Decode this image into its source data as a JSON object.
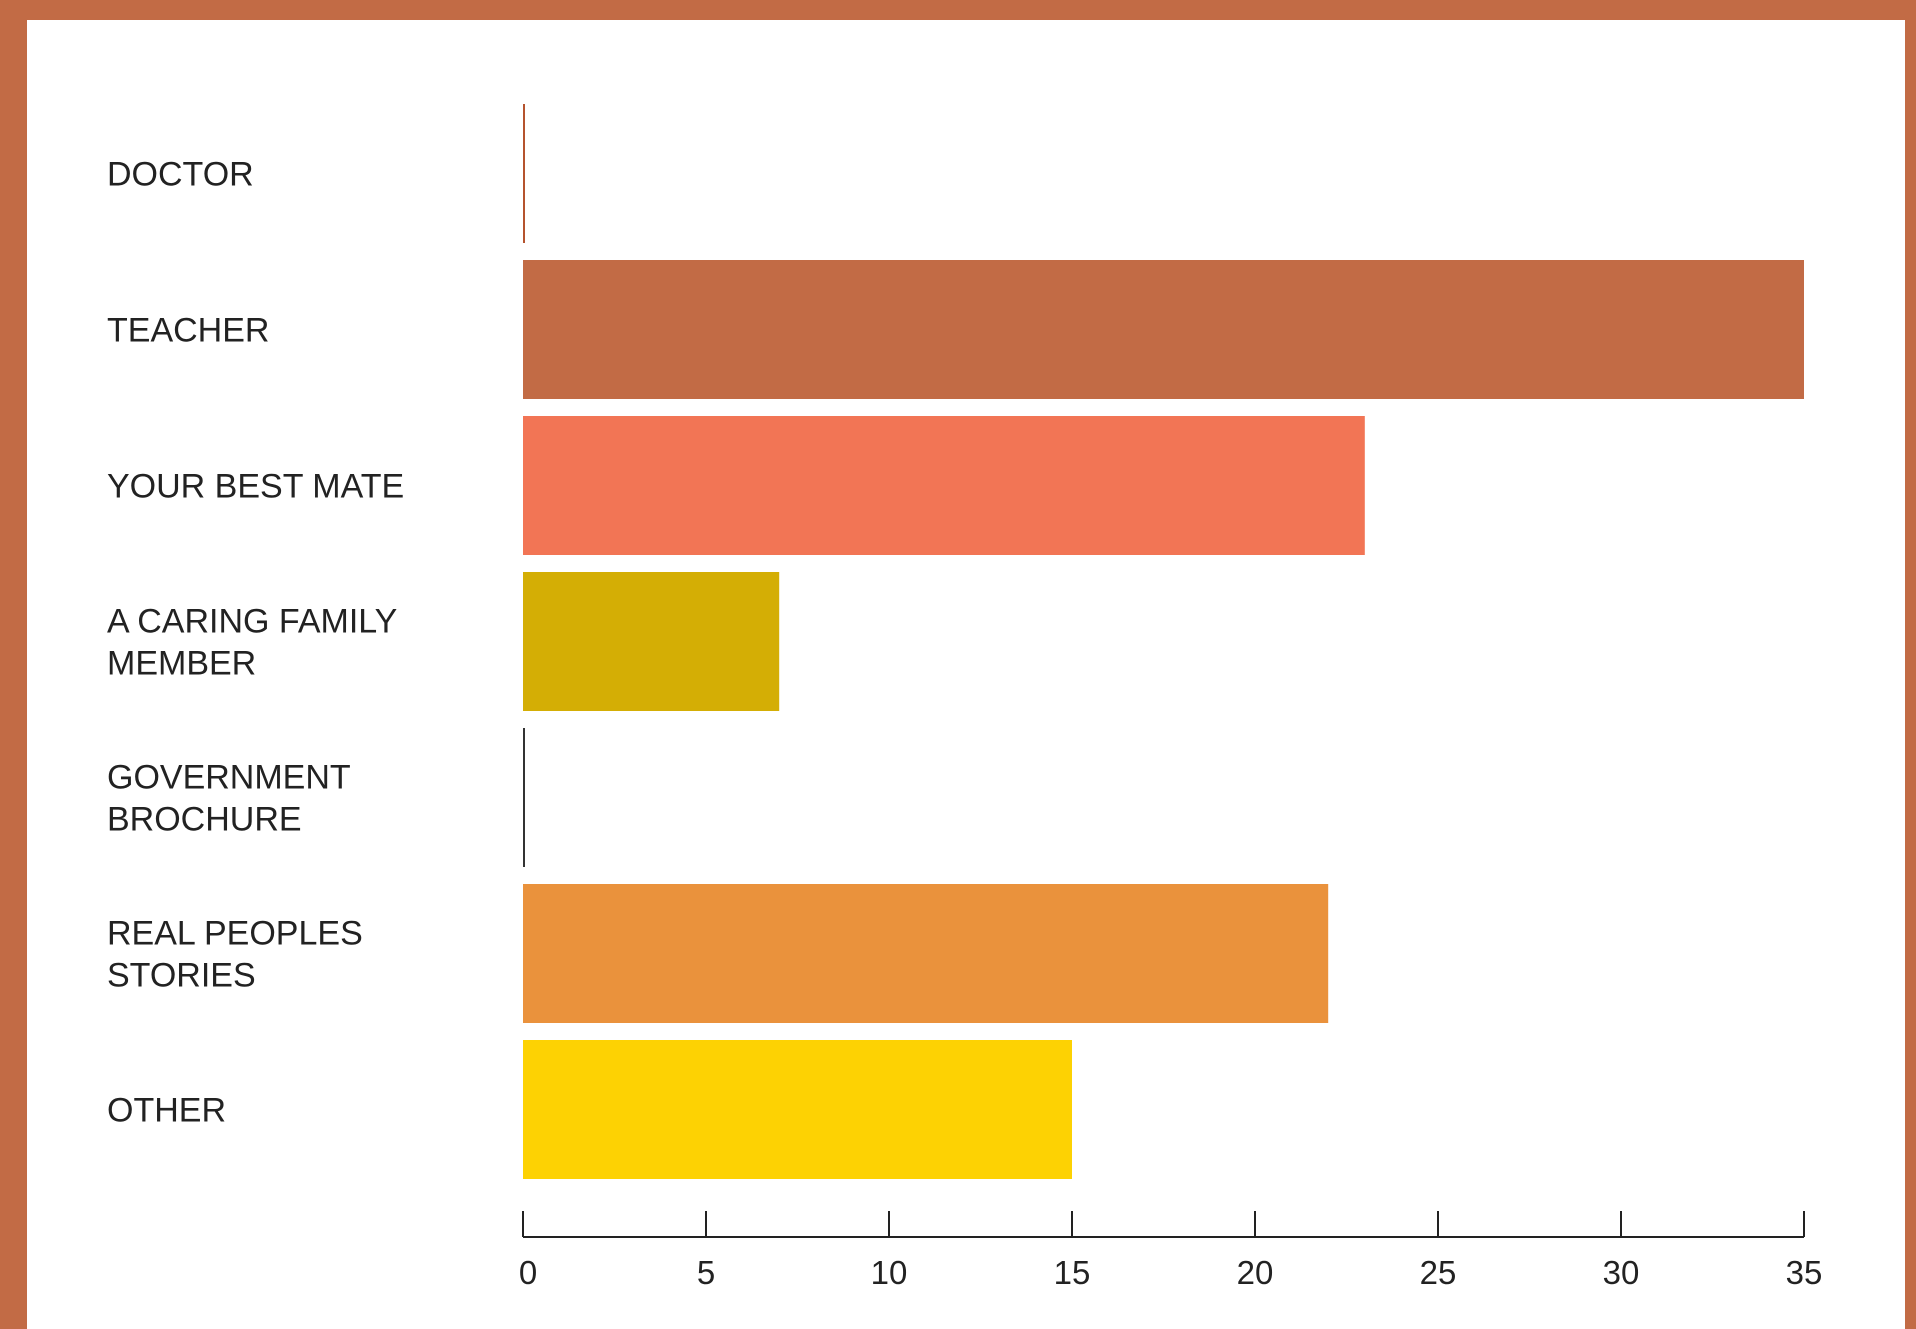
{
  "chart_data": {
    "type": "bar",
    "orientation": "horizontal",
    "categories": [
      "DOCTOR",
      "TEACHER",
      "YOUR BEST MATE",
      "A CARING FAMILY MEMBER",
      "GOVERNMENT BROCHURE",
      "REAL PEOPLES STORIES",
      "OTHER"
    ],
    "category_lines": [
      [
        "DOCTOR"
      ],
      [
        "TEACHER"
      ],
      [
        "YOUR BEST MATE"
      ],
      [
        "A CARING FAMILY",
        "MEMBER"
      ],
      [
        "GOVERNMENT",
        "BROCHURE"
      ],
      [
        "REAL PEOPLES",
        "STORIES"
      ],
      [
        "OTHER"
      ]
    ],
    "values": [
      0,
      35,
      23,
      7,
      0,
      22,
      15
    ],
    "colors": [
      "#B5532E",
      "#C26B45",
      "#F27555",
      "#D4AE05",
      "#333333",
      "#EA923C",
      "#FDD203"
    ],
    "xlim": [
      0,
      35
    ],
    "xticks": [
      0,
      5,
      10,
      15,
      20,
      25,
      30,
      35
    ],
    "title": "",
    "xlabel": "",
    "ylabel": "",
    "grid": false,
    "legend": "none"
  },
  "colors": {
    "frame": "#C26B45",
    "background": "#FFFFFF",
    "axis": "#222222",
    "text": "#222222"
  }
}
